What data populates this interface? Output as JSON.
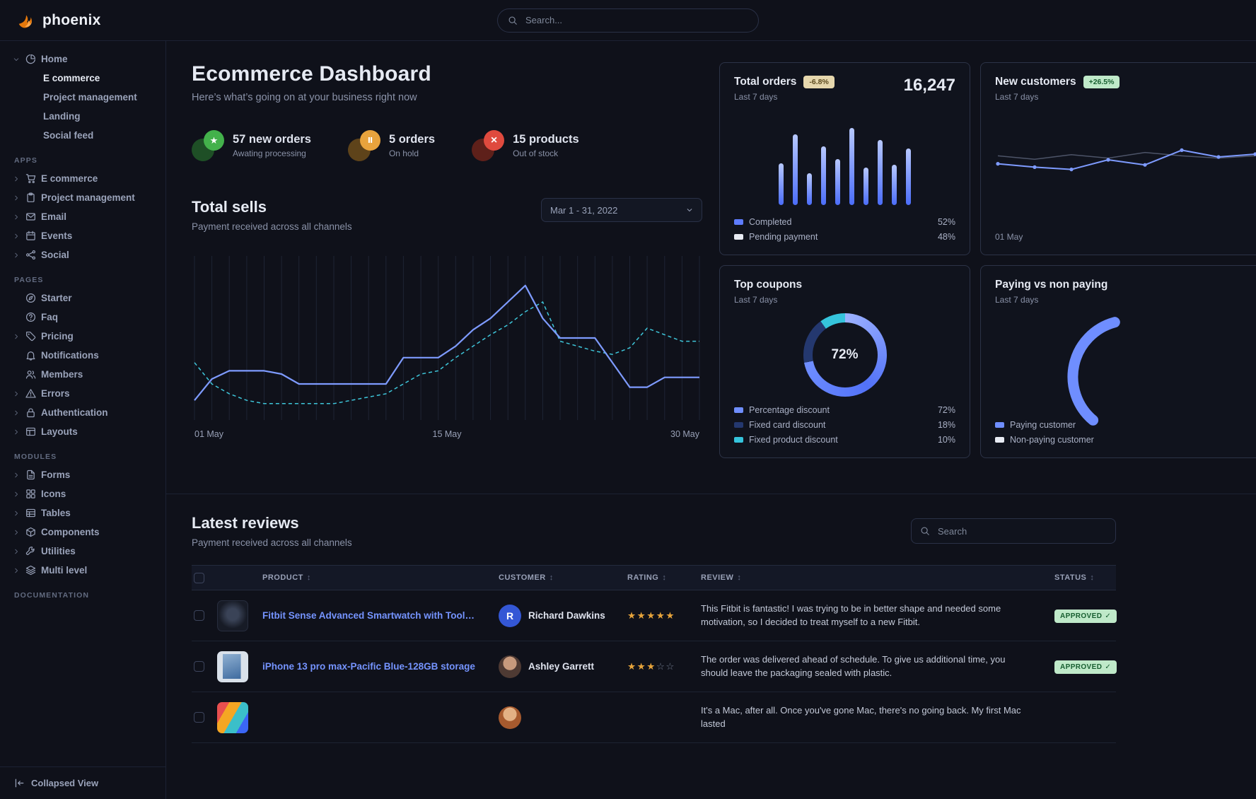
{
  "brand": {
    "name": "phoenix"
  },
  "navbar": {
    "search_placeholder": "Search..."
  },
  "sidebar": {
    "sections": [
      {
        "label": "",
        "items": [
          {
            "icon": "pie-chart",
            "caret": "down",
            "label": "Home",
            "children": [
              {
                "label": "E commerce",
                "active": true
              },
              {
                "label": "Project management"
              },
              {
                "label": "Landing"
              },
              {
                "label": "Social feed"
              }
            ]
          }
        ]
      },
      {
        "label": "APPS",
        "items": [
          {
            "icon": "cart",
            "caret": "right",
            "label": "E commerce"
          },
          {
            "icon": "clipboard",
            "caret": "right",
            "label": "Project management"
          },
          {
            "icon": "mail",
            "caret": "right",
            "label": "Email"
          },
          {
            "icon": "calendar",
            "caret": "right",
            "label": "Events"
          },
          {
            "icon": "share",
            "caret": "right",
            "label": "Social"
          }
        ]
      },
      {
        "label": "PAGES",
        "items": [
          {
            "icon": "compass",
            "label": "Starter"
          },
          {
            "icon": "help",
            "label": "Faq"
          },
          {
            "icon": "tag",
            "caret": "right",
            "label": "Pricing"
          },
          {
            "icon": "bell",
            "label": "Notifications"
          },
          {
            "icon": "users",
            "label": "Members"
          },
          {
            "icon": "alert",
            "caret": "right",
            "label": "Errors"
          },
          {
            "icon": "lock",
            "caret": "right",
            "label": "Authentication"
          },
          {
            "icon": "layout",
            "caret": "right",
            "label": "Layouts"
          }
        ]
      },
      {
        "label": "MODULES",
        "items": [
          {
            "icon": "file",
            "caret": "right",
            "label": "Forms"
          },
          {
            "icon": "grid",
            "caret": "right",
            "label": "Icons"
          },
          {
            "icon": "table",
            "caret": "right",
            "label": "Tables"
          },
          {
            "icon": "package",
            "caret": "right",
            "label": "Components"
          },
          {
            "icon": "wrench",
            "caret": "right",
            "label": "Utilities"
          },
          {
            "icon": "layers",
            "caret": "right",
            "label": "Multi level"
          }
        ]
      },
      {
        "label": "DOCUMENTATION",
        "items": []
      }
    ],
    "footer": {
      "label": "Collapsed View"
    }
  },
  "hero": {
    "title": "Ecommerce Dashboard",
    "subtitle": "Here’s what’s going on at your business right now",
    "stats": [
      {
        "icon": "star",
        "theme": "success",
        "value": "57 new orders",
        "caption": "Awating processing"
      },
      {
        "icon": "pause",
        "theme": "warning",
        "value": "5 orders",
        "caption": "On hold"
      },
      {
        "icon": "cross",
        "theme": "danger",
        "value": "15 products",
        "caption": "Out of stock"
      }
    ]
  },
  "total_sells": {
    "title": "Total sells",
    "subtitle": "Payment received across all channels",
    "date_range": "Mar 1 - 31, 2022"
  },
  "cards": {
    "total_orders": {
      "title": "Total orders",
      "badge": "-6.8%",
      "period": "Last 7 days",
      "value": "16,247",
      "legend": [
        {
          "label": "Completed",
          "value": "52%",
          "color": "#5e7cff"
        },
        {
          "label": "Pending payment",
          "value": "48%",
          "color": "#e8ebf3"
        }
      ]
    },
    "new_customers": {
      "title": "New customers",
      "badge": "+26.5%",
      "period": "Last 7 days",
      "x_label": "01 May"
    },
    "top_coupons": {
      "title": "Top coupons",
      "period": "Last 7 days",
      "center_value": "72%",
      "legend": [
        {
          "label": "Percentage discount",
          "value": "72%",
          "color": "#6f8eff"
        },
        {
          "label": "Fixed card discount",
          "value": "18%",
          "color": "#24386f"
        },
        {
          "label": "Fixed product discount",
          "value": "10%",
          "color": "#35c4dc"
        }
      ]
    },
    "paying": {
      "title": "Paying vs non paying",
      "period": "Last 7 days",
      "legend": [
        {
          "label": "Paying customer",
          "color": "#6f8eff"
        },
        {
          "label": "Non-paying customer",
          "color": "#e8ebf3"
        }
      ]
    }
  },
  "reviews": {
    "title": "Latest reviews",
    "subtitle": "Payment received across all channels",
    "search_placeholder": "Search",
    "columns": [
      "PRODUCT",
      "CUSTOMER",
      "RATING",
      "REVIEW",
      "STATUS"
    ],
    "rows": [
      {
        "product": "Fitbit Sense Advanced Smartwatch with Tools fo...",
        "customer": "Richard Dawkins",
        "avatar": "initial",
        "avatar_text": "R",
        "rating": 5,
        "review": "This Fitbit is fantastic! I was trying to be in better shape and needed some motivation, so I decided to treat myself to a new Fitbit.",
        "status": "APPROVED"
      },
      {
        "product": "iPhone 13 pro max-Pacific Blue-128GB storage",
        "customer": "Ashley Garrett",
        "avatar": "photo-1",
        "rating": 3,
        "review": "The order was delivered ahead of schedule. To give us additional time, you should leave the packaging sealed with plastic.",
        "status": "APPROVED"
      },
      {
        "product": "",
        "customer": "",
        "avatar": "photo-2",
        "rating": null,
        "review": "It's a Mac, after all. Once you've gone Mac, there's no going back. My first Mac lasted",
        "status": ""
      }
    ]
  },
  "chart_data": [
    {
      "id": "total-sells",
      "type": "line",
      "title": "Total sells",
      "x_ticks": [
        "01 May",
        "15 May",
        "30 May"
      ],
      "ylim": [
        0,
        100
      ],
      "grid": "vertical",
      "series": [
        {
          "name": "current",
          "style": "solid",
          "color": "#7e9bff",
          "values": [
            12,
            25,
            30,
            30,
            30,
            28,
            22,
            22,
            22,
            22,
            22,
            22,
            38,
            38,
            38,
            45,
            55,
            62,
            72,
            82,
            62,
            50,
            50,
            50,
            35,
            20,
            20,
            26,
            26,
            26
          ]
        },
        {
          "name": "previous",
          "style": "dashed",
          "color": "#3ec6da",
          "values": [
            35,
            22,
            16,
            12,
            10,
            10,
            10,
            10,
            10,
            12,
            14,
            16,
            22,
            28,
            30,
            38,
            45,
            52,
            58,
            66,
            72,
            48,
            45,
            42,
            40,
            44,
            56,
            52,
            48,
            48
          ]
        }
      ]
    },
    {
      "id": "total-orders-bars",
      "type": "bar",
      "title": "Total orders",
      "ylim": [
        0,
        100
      ],
      "values": [
        50,
        85,
        38,
        70,
        55,
        92,
        45,
        78,
        48,
        68
      ]
    },
    {
      "id": "new-customers",
      "type": "line",
      "title": "New customers",
      "ylim": [
        0,
        100
      ],
      "x_ticks": [
        "01 May"
      ],
      "series": [
        {
          "name": "previous",
          "style": "solid",
          "color": "#4d5468",
          "values": [
            52,
            46,
            54,
            48,
            58,
            52,
            48,
            52
          ]
        },
        {
          "name": "current",
          "style": "solid-markers",
          "color": "#7e9bff",
          "values": [
            38,
            32,
            28,
            45,
            36,
            62,
            50,
            55
          ]
        }
      ]
    },
    {
      "id": "top-coupons",
      "type": "donut",
      "title": "Top coupons",
      "center_label": "72%",
      "segments": [
        {
          "label": "Percentage discount",
          "value": 72,
          "color": "#6f8eff"
        },
        {
          "label": "Fixed card discount",
          "value": 18,
          "color": "#24386f"
        },
        {
          "label": "Fixed product discount",
          "value": 10,
          "color": "#35c4dc"
        }
      ]
    },
    {
      "id": "paying-gauge",
      "type": "donut",
      "title": "Paying vs non paying",
      "segments": [
        {
          "label": "Paying customer",
          "color": "#6f8eff"
        },
        {
          "label": "Non-paying customer",
          "color": "#e8ebf3"
        }
      ]
    }
  ]
}
